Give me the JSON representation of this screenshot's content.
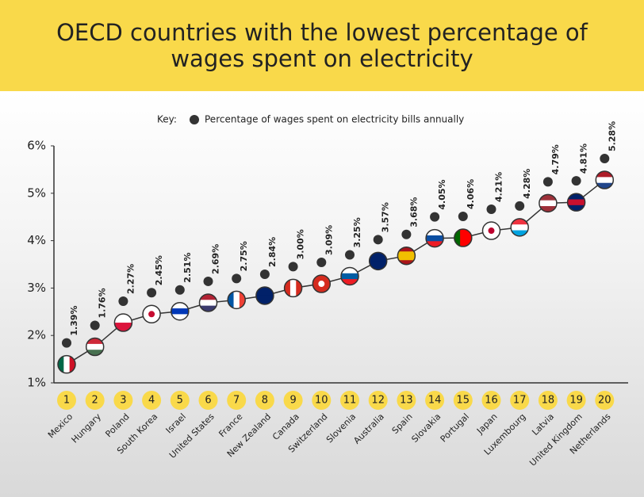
{
  "chart_data": {
    "type": "line",
    "title": "OECD countries with the lowest percentage of wages spent on electricity",
    "legend_title": "Key:",
    "categories": [
      "Mexico",
      "Hungary",
      "Poland",
      "South Korea",
      "Israel",
      "United States",
      "France",
      "New Zealand",
      "Canada",
      "Switzerland",
      "Slovenia",
      "Australia",
      "Spain",
      "Slovakia",
      "Portugal",
      "Japan",
      "Luxembourg",
      "Latvia",
      "United Kingdom",
      "Netherlands"
    ],
    "ranks": [
      1,
      2,
      3,
      4,
      5,
      6,
      7,
      8,
      9,
      10,
      11,
      12,
      13,
      14,
      15,
      16,
      17,
      18,
      19,
      20
    ],
    "series": [
      {
        "name": "Percentage of wages spent on electricity bills annually",
        "color": "#333333",
        "values": [
          1.39,
          1.76,
          2.27,
          2.45,
          2.51,
          2.69,
          2.75,
          2.84,
          3.0,
          3.09,
          3.25,
          3.57,
          3.68,
          4.05,
          4.06,
          4.21,
          4.28,
          4.79,
          4.81,
          5.28
        ],
        "value_labels": [
          "1.39%",
          "1.76%",
          "2.27%",
          "2.45%",
          "2.51%",
          "2.69%",
          "2.75%",
          "2.84%",
          "3.00%",
          "3.09%",
          "3.25%",
          "3.57%",
          "3.68%",
          "4.05%",
          "4.06%",
          "4.21%",
          "4.28%",
          "4.79%",
          "4.81%",
          "5.28%"
        ]
      }
    ],
    "ylim": [
      1,
      6
    ],
    "yticks": [
      {
        "value": 1,
        "label": "1%"
      },
      {
        "value": 2,
        "label": "2%"
      },
      {
        "value": 3,
        "label": "3%"
      },
      {
        "value": 4,
        "label": "4%"
      },
      {
        "value": 5,
        "label": "5%"
      },
      {
        "value": 6,
        "label": "6%"
      }
    ]
  }
}
